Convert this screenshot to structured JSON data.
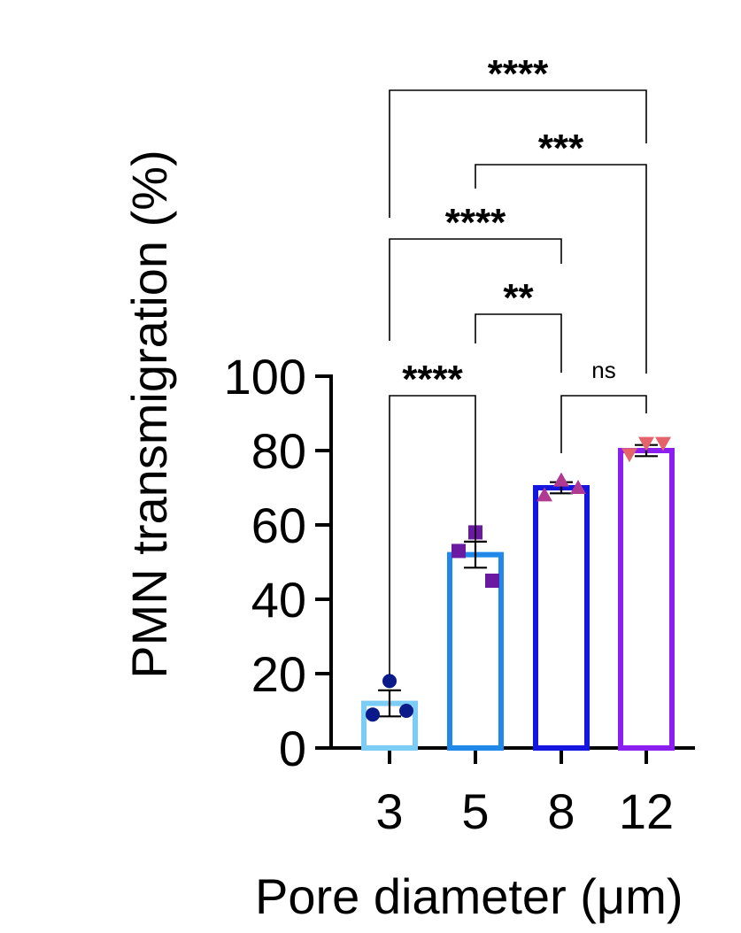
{
  "chart_data": {
    "type": "bar",
    "title": "",
    "xlabel": "Pore diameter (μm)",
    "ylabel": "PMN transmigration (%)",
    "ylim": [
      0,
      100
    ],
    "yticks": [
      "0",
      "20",
      "40",
      "60",
      "80",
      "100"
    ],
    "categories": [
      "3",
      "5",
      "8",
      "12"
    ],
    "values": [
      12,
      52,
      70,
      80
    ],
    "error": [
      3.5,
      3.5,
      1.5,
      1.5
    ],
    "bar_colors": [
      "#7ccdf5",
      "#1f88e8",
      "#1515e0",
      "#8a1ff0"
    ],
    "points": [
      {
        "category": "3",
        "marker": "circle",
        "color": "#0a1a8a",
        "values": [
          18,
          9,
          10
        ]
      },
      {
        "category": "5",
        "marker": "square",
        "color": "#6a1aa0",
        "values": [
          58,
          53,
          45
        ]
      },
      {
        "category": "8",
        "marker": "triangle-up",
        "color": "#b03a92",
        "values": [
          72,
          68,
          70
        ]
      },
      {
        "category": "12",
        "marker": "triangle-down",
        "color": "#e5636b",
        "values": [
          82,
          79,
          82
        ]
      }
    ],
    "comparisons": [
      {
        "from": "3",
        "to": "5",
        "label": "****",
        "level": 0
      },
      {
        "from": "5",
        "to": "8",
        "label": "**",
        "level": 1
      },
      {
        "from": "8",
        "to": "12",
        "label": "ns",
        "level": 0
      },
      {
        "from": "3",
        "to": "8",
        "label": "****",
        "level": 2
      },
      {
        "from": "5",
        "to": "12",
        "label": "***",
        "level": 3
      },
      {
        "from": "3",
        "to": "12",
        "label": "****",
        "level": 4
      }
    ]
  }
}
